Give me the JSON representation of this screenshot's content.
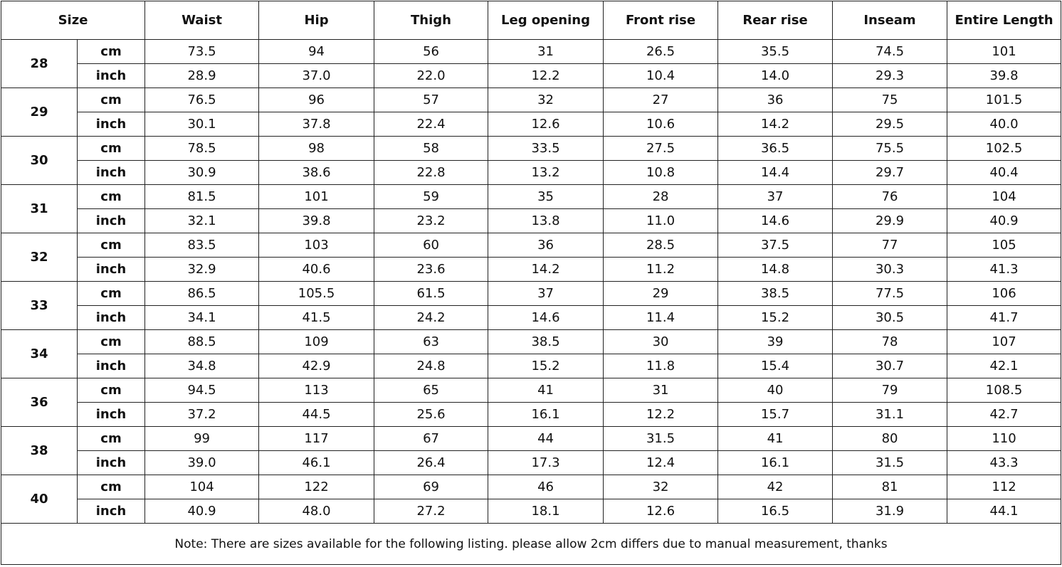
{
  "header": {
    "size": "Size",
    "columns": [
      "Waist",
      "Hip",
      "Thigh",
      "Leg opening",
      "Front rise",
      "Rear rise",
      "Inseam",
      "Entire Length"
    ]
  },
  "units": {
    "cm": "cm",
    "inch": "inch"
  },
  "rows": [
    {
      "size": "28",
      "cm": [
        "73.5",
        "94",
        "56",
        "31",
        "26.5",
        "35.5",
        "74.5",
        "101"
      ],
      "inch": [
        "28.9",
        "37.0",
        "22.0",
        "12.2",
        "10.4",
        "14.0",
        "29.3",
        "39.8"
      ]
    },
    {
      "size": "29",
      "cm": [
        "76.5",
        "96",
        "57",
        "32",
        "27",
        "36",
        "75",
        "101.5"
      ],
      "inch": [
        "30.1",
        "37.8",
        "22.4",
        "12.6",
        "10.6",
        "14.2",
        "29.5",
        "40.0"
      ]
    },
    {
      "size": "30",
      "cm": [
        "78.5",
        "98",
        "58",
        "33.5",
        "27.5",
        "36.5",
        "75.5",
        "102.5"
      ],
      "inch": [
        "30.9",
        "38.6",
        "22.8",
        "13.2",
        "10.8",
        "14.4",
        "29.7",
        "40.4"
      ]
    },
    {
      "size": "31",
      "cm": [
        "81.5",
        "101",
        "59",
        "35",
        "28",
        "37",
        "76",
        "104"
      ],
      "inch": [
        "32.1",
        "39.8",
        "23.2",
        "13.8",
        "11.0",
        "14.6",
        "29.9",
        "40.9"
      ]
    },
    {
      "size": "32",
      "cm": [
        "83.5",
        "103",
        "60",
        "36",
        "28.5",
        "37.5",
        "77",
        "105"
      ],
      "inch": [
        "32.9",
        "40.6",
        "23.6",
        "14.2",
        "11.2",
        "14.8",
        "30.3",
        "41.3"
      ]
    },
    {
      "size": "33",
      "cm": [
        "86.5",
        "105.5",
        "61.5",
        "37",
        "29",
        "38.5",
        "77.5",
        "106"
      ],
      "inch": [
        "34.1",
        "41.5",
        "24.2",
        "14.6",
        "11.4",
        "15.2",
        "30.5",
        "41.7"
      ]
    },
    {
      "size": "34",
      "cm": [
        "88.5",
        "109",
        "63",
        "38.5",
        "30",
        "39",
        "78",
        "107"
      ],
      "inch": [
        "34.8",
        "42.9",
        "24.8",
        "15.2",
        "11.8",
        "15.4",
        "30.7",
        "42.1"
      ]
    },
    {
      "size": "36",
      "cm": [
        "94.5",
        "113",
        "65",
        "41",
        "31",
        "40",
        "79",
        "108.5"
      ],
      "inch": [
        "37.2",
        "44.5",
        "25.6",
        "16.1",
        "12.2",
        "15.7",
        "31.1",
        "42.7"
      ]
    },
    {
      "size": "38",
      "cm": [
        "99",
        "117",
        "67",
        "44",
        "31.5",
        "41",
        "80",
        "110"
      ],
      "inch": [
        "39.0",
        "46.1",
        "26.4",
        "17.3",
        "12.4",
        "16.1",
        "31.5",
        "43.3"
      ]
    },
    {
      "size": "40",
      "cm": [
        "104",
        "122",
        "69",
        "46",
        "32",
        "42",
        "81",
        "112"
      ],
      "inch": [
        "40.9",
        "48.0",
        "27.2",
        "18.1",
        "12.6",
        "16.5",
        "31.9",
        "44.1"
      ]
    }
  ],
  "note": "Note: There are sizes available for the following listing. please allow 2cm differs due to manual measurement, thanks"
}
